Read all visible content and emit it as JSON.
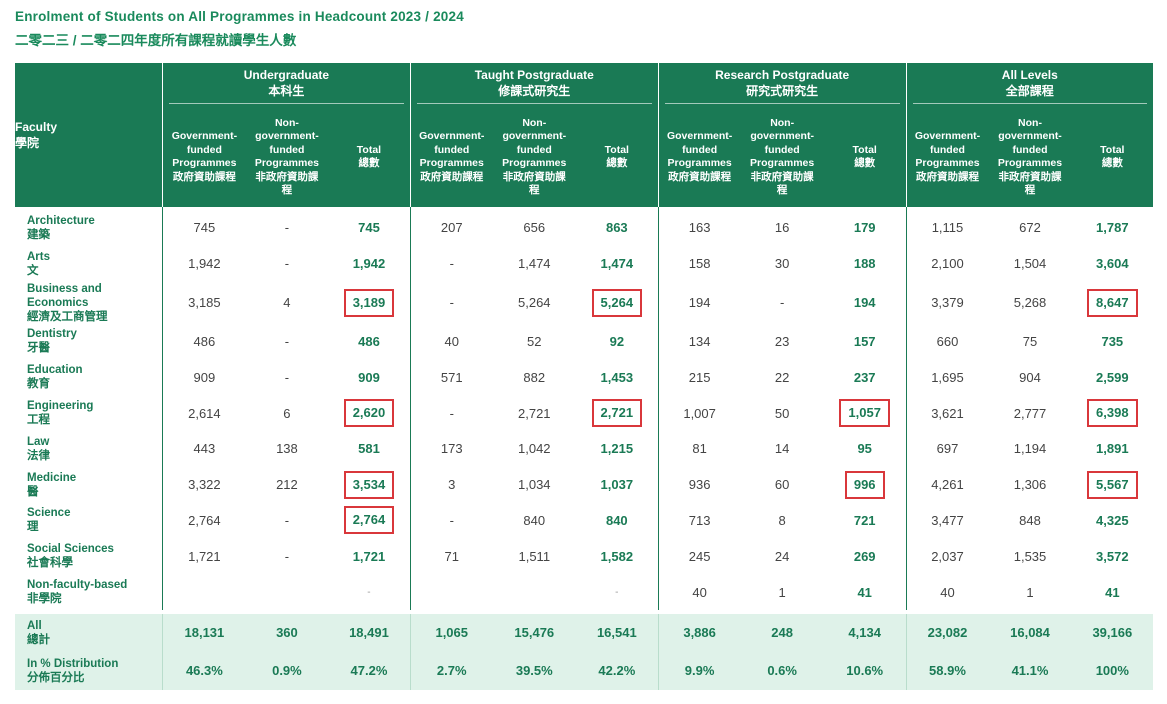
{
  "title_en": "Enrolment of Students on All Programmes in Headcount 2023 / 2024",
  "title_zh": "二零二三 / 二零二四年度所有課程就讀學生人數",
  "header": {
    "faculty_en": "Faculty",
    "faculty_zh": "學院",
    "groups": [
      {
        "en": "Undergraduate",
        "zh": "本科生"
      },
      {
        "en": "Taught Postgraduate",
        "zh": "修課式研究生"
      },
      {
        "en": "Research Postgraduate",
        "zh": "研究式研究生"
      },
      {
        "en": "All Levels",
        "zh": "全部課程"
      }
    ],
    "sub": {
      "gov_en": "Government-funded Programmes",
      "gov_zh": "政府資助課程",
      "nongov_en": "Non-government-funded Programmes",
      "nongov_zh": "非政府資助課程",
      "total_en": "Total",
      "total_zh": "總數"
    }
  },
  "rows": [
    {
      "en": "Architecture",
      "zh": "建築",
      "v": [
        "745",
        "-",
        "745",
        "207",
        "656",
        "863",
        "163",
        "16",
        "179",
        "1,115",
        "672",
        "1,787"
      ]
    },
    {
      "en": "Arts",
      "zh": "文",
      "v": [
        "1,942",
        "-",
        "1,942",
        "-",
        "1,474",
        "1,474",
        "158",
        "30",
        "188",
        "2,100",
        "1,504",
        "3,604"
      ]
    },
    {
      "en": "Business and Economics",
      "zh": "經濟及工商管理",
      "v": [
        "3,185",
        "4",
        "3,189",
        "-",
        "5,264",
        "5,264",
        "194",
        "-",
        "194",
        "3,379",
        "5,268",
        "8,647"
      ]
    },
    {
      "en": "Dentistry",
      "zh": "牙醫",
      "v": [
        "486",
        "-",
        "486",
        "40",
        "52",
        "92",
        "134",
        "23",
        "157",
        "660",
        "75",
        "735"
      ]
    },
    {
      "en": "Education",
      "zh": "教育",
      "v": [
        "909",
        "-",
        "909",
        "571",
        "882",
        "1,453",
        "215",
        "22",
        "237",
        "1,695",
        "904",
        "2,599"
      ]
    },
    {
      "en": "Engineering",
      "zh": "工程",
      "v": [
        "2,614",
        "6",
        "2,620",
        "-",
        "2,721",
        "2,721",
        "1,007",
        "50",
        "1,057",
        "3,621",
        "2,777",
        "6,398"
      ]
    },
    {
      "en": "Law",
      "zh": "法律",
      "v": [
        "443",
        "138",
        "581",
        "173",
        "1,042",
        "1,215",
        "81",
        "14",
        "95",
        "697",
        "1,194",
        "1,891"
      ]
    },
    {
      "en": "Medicine",
      "zh": "醫",
      "v": [
        "3,322",
        "212",
        "3,534",
        "3",
        "1,034",
        "1,037",
        "936",
        "60",
        "996",
        "4,261",
        "1,306",
        "5,567"
      ]
    },
    {
      "en": "Science",
      "zh": "理",
      "v": [
        "2,764",
        "-",
        "2,764",
        "-",
        "840",
        "840",
        "713",
        "8",
        "721",
        "3,477",
        "848",
        "4,325"
      ]
    },
    {
      "en": "Social Sciences",
      "zh": "社會科學",
      "v": [
        "1,721",
        "-",
        "1,721",
        "71",
        "1,511",
        "1,582",
        "245",
        "24",
        "269",
        "2,037",
        "1,535",
        "3,572"
      ]
    },
    {
      "en": "Non-faculty-based",
      "zh": "非學院",
      "v": [
        "",
        "",
        "-",
        "",
        "",
        "-",
        "40",
        "1",
        "41",
        "40",
        "1",
        "41"
      ]
    }
  ],
  "totals": [
    {
      "en": "All",
      "zh": "總計",
      "v": [
        "18,131",
        "360",
        "18,491",
        "1,065",
        "15,476",
        "16,541",
        "3,886",
        "248",
        "4,134",
        "23,082",
        "16,084",
        "39,166"
      ]
    },
    {
      "en": "In % Distribution",
      "zh": "分佈百分比",
      "v": [
        "46.3%",
        "0.9%",
        "47.2%",
        "2.7%",
        "39.5%",
        "42.2%",
        "9.9%",
        "0.6%",
        "10.6%",
        "58.9%",
        "41.1%",
        "100%"
      ]
    }
  ],
  "highlighted_cells": [
    {
      "row": "Business and Economics",
      "columns": [
        "Undergraduate Total",
        "Taught Postgraduate Total",
        "All Levels Total"
      ]
    },
    {
      "row": "Engineering",
      "columns": [
        "Undergraduate Total",
        "Taught Postgraduate Total",
        "Research Postgraduate Total",
        "All Levels Total"
      ]
    },
    {
      "row": "Medicine",
      "columns": [
        "Undergraduate Total",
        "Research Postgraduate Total",
        "All Levels Total"
      ]
    },
    {
      "row": "Science",
      "columns": [
        "Undergraduate Total"
      ]
    }
  ],
  "colors": {
    "header_bg": "#1a7a55",
    "accent_text": "#1a8a5c",
    "footer_bg": "#dff2e9",
    "highlight_border": "#d9373b"
  }
}
